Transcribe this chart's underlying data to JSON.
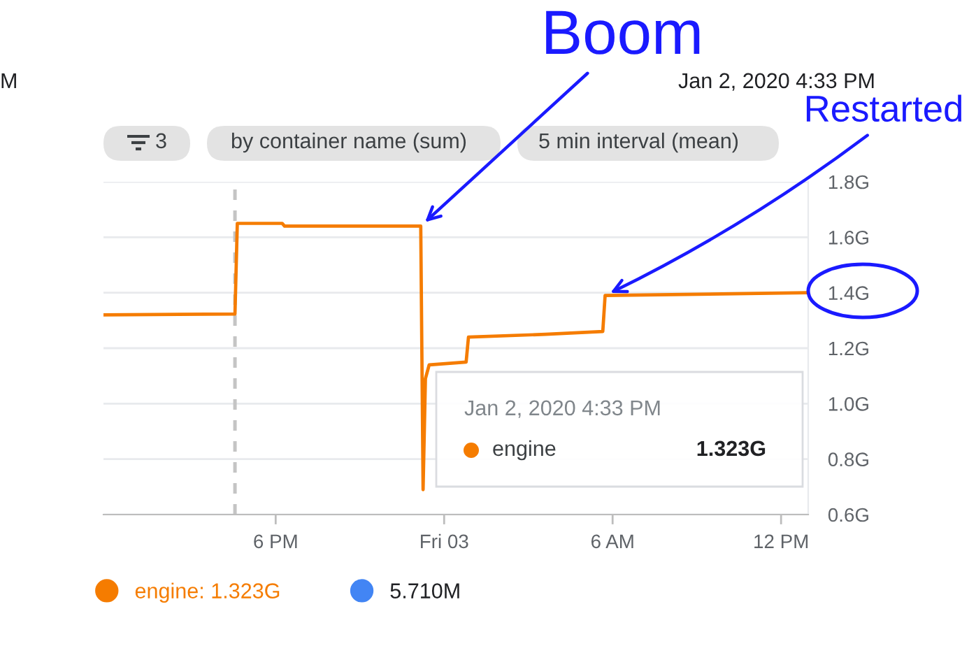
{
  "chart_data": {
    "type": "line",
    "x": [
      "2020-01-02T11:52",
      "2020-01-02T16:33",
      "2020-01-02T16:38",
      "2020-01-02T18:14",
      "2020-01-02T18:19",
      "2020-01-02T23:10",
      "2020-01-02T23:15",
      "2020-01-02T23:20",
      "2020-01-02T23:28",
      "2020-01-03T00:47",
      "2020-01-03T00:52",
      "2020-01-03T03:37",
      "2020-01-03T05:39",
      "2020-01-03T05:44",
      "2020-01-03T12:58"
    ],
    "series": [
      {
        "name": "engine: 1.323G",
        "color": "#f57c00",
        "values": [
          1.32,
          1.323,
          1.65,
          1.65,
          1.64,
          1.64,
          0.69,
          1.09,
          1.14,
          1.15,
          1.24,
          1.25,
          1.26,
          1.39,
          1.4
        ]
      },
      {
        "name": "5.710M",
        "color": "#4285f4",
        "values": [
          null,
          null,
          null,
          null,
          null,
          null,
          null,
          null,
          null,
          null,
          null,
          null,
          null,
          null,
          null
        ]
      }
    ],
    "xlim": [
      "2020-01-02T11:52",
      "2020-01-03T12:58"
    ],
    "xticks": [
      {
        "value": "2020-01-02T18:00",
        "label": "6 PM"
      },
      {
        "value": "2020-01-03T00:00",
        "label": "Fri 03"
      },
      {
        "value": "2020-01-03T06:00",
        "label": "6 AM"
      },
      {
        "value": "2020-01-03T12:00",
        "label": "12 PM"
      }
    ],
    "ylim": [
      0.6,
      1.8
    ],
    "yticks": [
      {
        "value": 0.6,
        "label": "0.6G"
      },
      {
        "value": 0.8,
        "label": "0.8G"
      },
      {
        "value": 1.0,
        "label": "1.0G"
      },
      {
        "value": 1.2,
        "label": "1.2G"
      },
      {
        "value": 1.4,
        "label": "1.4G"
      },
      {
        "value": 1.6,
        "label": "1.6G"
      },
      {
        "value": 1.8,
        "label": "1.8G"
      }
    ],
    "grid": "y",
    "legend": "bottom",
    "ref_lines": [
      {
        "axis": "x",
        "value": "2020-01-02T16:33",
        "color": "#c4c4c4",
        "line_style": "dashed"
      }
    ],
    "annotations": [
      "M",
      "Jan 2, 2020 4:33 PM",
      "3",
      "by container name (sum)",
      "5 min interval (mean)",
      "Jan 2, 2020 4:33 PM",
      "engine",
      "1.323G",
      {
        "text": "Boom",
        "x": "2020-01-02T23:10",
        "y": 1.64
      },
      {
        "text": "Restarted",
        "x": "2020-01-03T05:44",
        "y": 1.39
      }
    ]
  }
}
